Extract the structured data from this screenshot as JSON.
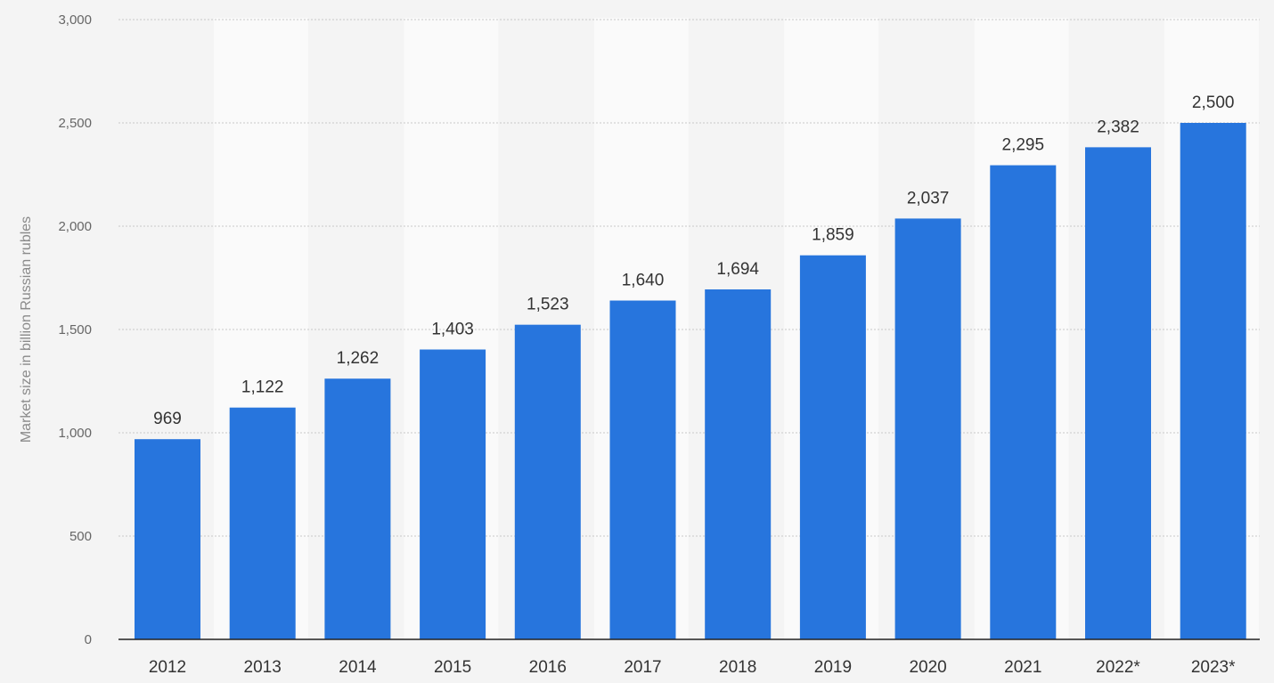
{
  "chart_data": {
    "type": "bar",
    "title": "",
    "xlabel": "",
    "ylabel": "Market size in billion Russian rubles",
    "categories": [
      "2012",
      "2013",
      "2014",
      "2015",
      "2016",
      "2017",
      "2018",
      "2019",
      "2020",
      "2021",
      "2022*",
      "2023*"
    ],
    "values": [
      969,
      1122,
      1262,
      1403,
      1523,
      1640,
      1694,
      1859,
      2037,
      2295,
      2382,
      2500
    ],
    "value_labels": [
      "969",
      "1,122",
      "1,262",
      "1,403",
      "1,523",
      "1,640",
      "1,694",
      "1,859",
      "2,037",
      "2,295",
      "2,382",
      "2,500"
    ],
    "ylim": [
      0,
      3000
    ],
    "yticks": [
      0,
      500,
      1000,
      1500,
      2000,
      2500,
      3000
    ],
    "ytick_labels": [
      "0",
      "500",
      "1,000",
      "1,500",
      "2,000",
      "2,500",
      "3,000"
    ],
    "grid": true,
    "legend": "none",
    "bar_color": "#2775dd",
    "band_color": "#fafafa",
    "background_color": "#f4f4f4"
  }
}
